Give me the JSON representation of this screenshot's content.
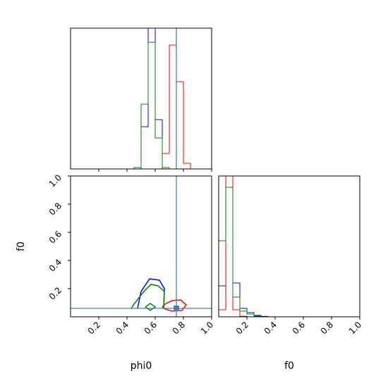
{
  "chart_data": {
    "type": "corner",
    "parameters": [
      "phi0",
      "f0"
    ],
    "xlabels": [
      "phi0",
      "f0"
    ],
    "ylabel": "f0",
    "limits": {
      "phi0": [
        0,
        1
      ],
      "f0": [
        0,
        1
      ]
    },
    "ticks": {
      "phi0": [
        "0.2",
        "0.4",
        "0.6",
        "0.8",
        "1.0"
      ],
      "f0": [
        "0.2",
        "0.4",
        "0.6",
        "0.8",
        "1.0"
      ]
    },
    "truth": {
      "phi0": 0.75,
      "f0": 0.06
    },
    "truth_color": "#4682b4",
    "series": [
      {
        "color": "#0000ff",
        "hist_phi0": {
          "edges": [
            0.5,
            0.55,
            0.6,
            0.65,
            0.7
          ],
          "heights": [
            0.3,
            1.05,
            0.35,
            0.01
          ]
        },
        "hist_f0": {
          "edges": [
            0.0,
            0.05,
            0.1,
            0.15,
            0.2,
            0.25,
            0.3,
            0.35
          ],
          "heights": [
            0.22,
            1.05,
            0.24,
            0.06,
            0.03,
            0.01,
            0.003
          ]
        },
        "contour": [
          [
            0.475,
            0.06
          ],
          [
            0.5,
            0.18
          ],
          [
            0.56,
            0.27
          ],
          [
            0.63,
            0.26
          ],
          [
            0.665,
            0.2
          ],
          [
            0.66,
            0.06
          ]
        ]
      },
      {
        "color": "#ff0000",
        "hist_phi0": {
          "edges": [
            0.65,
            0.7,
            0.75,
            0.8,
            0.85
          ],
          "heights": [
            0.11,
            0.88,
            0.62,
            0.04
          ]
        },
        "hist_f0": {
          "edges": [
            0.0,
            0.05,
            0.1,
            0.15,
            0.2
          ],
          "heights": [
            0.05,
            1.05,
            0.05,
            0.004
          ]
        },
        "contour": [
          [
            0.65,
            0.07
          ],
          [
            0.67,
            0.09
          ],
          [
            0.72,
            0.115
          ],
          [
            0.78,
            0.12
          ],
          [
            0.82,
            0.085
          ],
          [
            0.79,
            0.045
          ],
          [
            0.72,
            0.04
          ],
          [
            0.67,
            0.055
          ],
          [
            0.65,
            0.07
          ]
        ]
      },
      {
        "color": "#008000",
        "hist_phi0": {
          "edges": [
            0.45,
            0.5,
            0.55,
            0.6,
            0.65,
            0.7
          ],
          "heights": [
            0.01,
            0.46,
            0.9,
            0.22,
            0.01
          ]
        },
        "hist_f0": {
          "edges": [
            0.0,
            0.05,
            0.1,
            0.15,
            0.2,
            0.25,
            0.3
          ],
          "heights": [
            0.54,
            0.92,
            0.14,
            0.04,
            0.02,
            0.005
          ]
        },
        "contour": [
          [
            0.43,
            0.06
          ],
          [
            0.45,
            0.09
          ],
          [
            0.52,
            0.18
          ],
          [
            0.57,
            0.23
          ],
          [
            0.62,
            0.22
          ],
          [
            0.665,
            0.18
          ],
          [
            0.66,
            0.06
          ]
        ],
        "inner_contour": [
          [
            0.53,
            0.07
          ],
          [
            0.565,
            0.095
          ],
          [
            0.6,
            0.07
          ],
          [
            0.565,
            0.045
          ],
          [
            0.53,
            0.07
          ]
        ]
      }
    ]
  }
}
